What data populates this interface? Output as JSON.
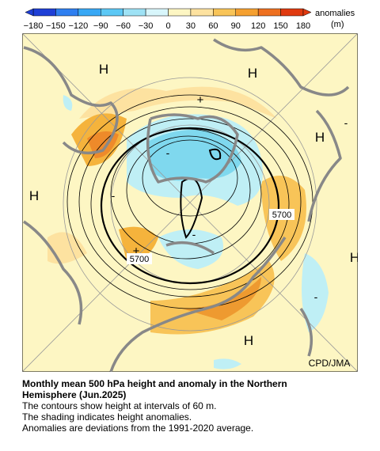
{
  "colorbar": {
    "ticks": [
      "−180",
      "−150",
      "−120",
      "−90",
      "−60",
      "−30",
      "0",
      "30",
      "60",
      "90",
      "120",
      "150",
      "180"
    ],
    "label": "anomalies",
    "unit": "(m)"
  },
  "map": {
    "labels": [
      "H",
      "H",
      "H",
      "H",
      "H",
      "H",
      "+",
      "+",
      "-",
      "-",
      "-",
      "-",
      "-"
    ],
    "contour_labels": [
      "5700",
      "5700"
    ],
    "credit": "CPD/JMA"
  },
  "caption": {
    "title": "Monthly mean 500 hPa height and anomaly in the Northern Hemisphere (Jun.2025)",
    "lines": [
      "The contours show height at intervals of 60 m.",
      "The shading indicates height anomalies.",
      "Anomalies are deviations from the 1991-2020 average."
    ]
  }
}
